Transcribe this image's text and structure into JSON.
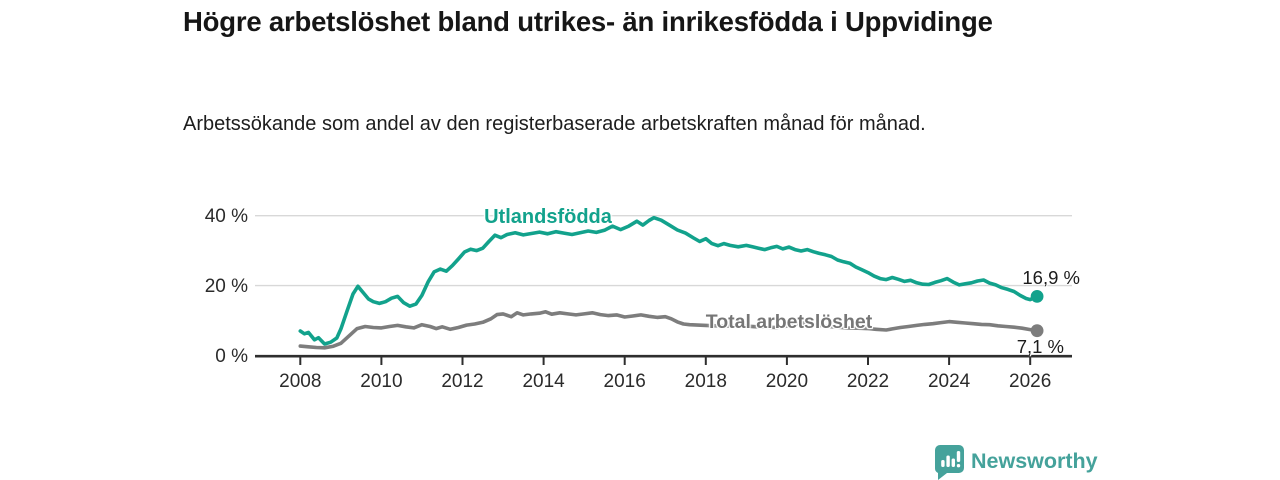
{
  "header": {
    "title": "Högre arbetslöshet bland utrikes- än inrikesfödda i Uppvidinge",
    "subtitle": "Arbetssökande som andel av den registerbaserade arbetskraften månad för månad."
  },
  "chart_data": {
    "type": "line",
    "title": "Högre arbetslöshet bland utrikes- än inrikesfödda i Uppvidinge",
    "subtitle": "Arbetssökande som andel av den registerbaserade arbetskraften månad för månad.",
    "grid": "horizontal",
    "x_axis": {
      "ticks": [
        2008,
        2010,
        2012,
        2014,
        2016,
        2018,
        2020,
        2022,
        2024,
        2026
      ]
    },
    "y_axis": {
      "ticks": [
        0,
        20,
        40
      ],
      "tick_labels": [
        "0 %",
        "20 %",
        "40 %"
      ],
      "range": [
        0,
        45
      ],
      "unit": "%"
    },
    "colors": {
      "grid": "#d8d8d8",
      "axis": "#2e2e2e",
      "tick_text": "#2b2b2b"
    },
    "series": [
      {
        "name": "Utlandsfödda",
        "color": "#12a28c",
        "end_label": "16,9 %",
        "end_value": 16.9,
        "points": [
          [
            2008.0,
            7.0
          ],
          [
            2008.1,
            6.2
          ],
          [
            2008.2,
            6.6
          ],
          [
            2008.35,
            4.5
          ],
          [
            2008.45,
            5.1
          ],
          [
            2008.6,
            3.3
          ],
          [
            2008.75,
            3.8
          ],
          [
            2008.9,
            5.0
          ],
          [
            2009.0,
            7.6
          ],
          [
            2009.15,
            12.6
          ],
          [
            2009.3,
            17.6
          ],
          [
            2009.42,
            19.8
          ],
          [
            2009.55,
            18.0
          ],
          [
            2009.68,
            16.2
          ],
          [
            2009.8,
            15.4
          ],
          [
            2009.95,
            14.9
          ],
          [
            2010.1,
            15.4
          ],
          [
            2010.25,
            16.4
          ],
          [
            2010.4,
            16.9
          ],
          [
            2010.55,
            15.1
          ],
          [
            2010.7,
            14.1
          ],
          [
            2010.85,
            14.7
          ],
          [
            2011.0,
            17.2
          ],
          [
            2011.15,
            21.0
          ],
          [
            2011.3,
            23.9
          ],
          [
            2011.45,
            24.7
          ],
          [
            2011.6,
            24.1
          ],
          [
            2011.75,
            25.7
          ],
          [
            2011.9,
            27.6
          ],
          [
            2012.05,
            29.6
          ],
          [
            2012.2,
            30.4
          ],
          [
            2012.35,
            30.0
          ],
          [
            2012.5,
            30.7
          ],
          [
            2012.65,
            32.6
          ],
          [
            2012.8,
            34.4
          ],
          [
            2012.95,
            33.7
          ],
          [
            2013.1,
            34.6
          ],
          [
            2013.3,
            35.1
          ],
          [
            2013.5,
            34.5
          ],
          [
            2013.7,
            34.9
          ],
          [
            2013.9,
            35.3
          ],
          [
            2014.1,
            34.8
          ],
          [
            2014.3,
            35.4
          ],
          [
            2014.5,
            35.0
          ],
          [
            2014.7,
            34.6
          ],
          [
            2014.9,
            35.1
          ],
          [
            2015.1,
            35.6
          ],
          [
            2015.3,
            35.2
          ],
          [
            2015.5,
            35.8
          ],
          [
            2015.7,
            37.0
          ],
          [
            2015.9,
            36.0
          ],
          [
            2016.1,
            37.0
          ],
          [
            2016.3,
            38.4
          ],
          [
            2016.45,
            37.3
          ],
          [
            2016.6,
            38.6
          ],
          [
            2016.72,
            39.4
          ],
          [
            2016.9,
            38.7
          ],
          [
            2017.1,
            37.3
          ],
          [
            2017.3,
            35.9
          ],
          [
            2017.5,
            35.0
          ],
          [
            2017.7,
            33.6
          ],
          [
            2017.85,
            32.6
          ],
          [
            2018.0,
            33.4
          ],
          [
            2018.15,
            32.0
          ],
          [
            2018.3,
            31.4
          ],
          [
            2018.45,
            32.0
          ],
          [
            2018.6,
            31.5
          ],
          [
            2018.8,
            31.1
          ],
          [
            2019.0,
            31.5
          ],
          [
            2019.15,
            31.1
          ],
          [
            2019.3,
            30.7
          ],
          [
            2019.45,
            30.3
          ],
          [
            2019.6,
            30.8
          ],
          [
            2019.75,
            31.2
          ],
          [
            2019.9,
            30.5
          ],
          [
            2020.05,
            31.0
          ],
          [
            2020.2,
            30.3
          ],
          [
            2020.35,
            29.9
          ],
          [
            2020.5,
            30.3
          ],
          [
            2020.65,
            29.7
          ],
          [
            2020.8,
            29.2
          ],
          [
            2020.95,
            28.8
          ],
          [
            2021.1,
            28.3
          ],
          [
            2021.25,
            27.3
          ],
          [
            2021.4,
            26.8
          ],
          [
            2021.55,
            26.4
          ],
          [
            2021.7,
            25.3
          ],
          [
            2021.85,
            24.5
          ],
          [
            2022.0,
            23.7
          ],
          [
            2022.15,
            22.7
          ],
          [
            2022.3,
            22.0
          ],
          [
            2022.45,
            21.7
          ],
          [
            2022.6,
            22.3
          ],
          [
            2022.75,
            21.8
          ],
          [
            2022.9,
            21.2
          ],
          [
            2023.05,
            21.5
          ],
          [
            2023.2,
            20.8
          ],
          [
            2023.35,
            20.4
          ],
          [
            2023.5,
            20.3
          ],
          [
            2023.65,
            20.9
          ],
          [
            2023.8,
            21.4
          ],
          [
            2023.95,
            22.0
          ],
          [
            2024.1,
            21.0
          ],
          [
            2024.25,
            20.2
          ],
          [
            2024.4,
            20.5
          ],
          [
            2024.55,
            20.8
          ],
          [
            2024.7,
            21.3
          ],
          [
            2024.85,
            21.6
          ],
          [
            2025.0,
            20.7
          ],
          [
            2025.15,
            20.2
          ],
          [
            2025.3,
            19.4
          ],
          [
            2025.45,
            18.9
          ],
          [
            2025.6,
            18.3
          ],
          [
            2025.75,
            17.2
          ],
          [
            2025.9,
            16.3
          ],
          [
            2026.0,
            16.0
          ],
          [
            2026.17,
            16.9
          ]
        ]
      },
      {
        "name": "Total arbetslöshet",
        "color": "#7d7d7d",
        "end_label": "7,1 %",
        "end_value": 7.1,
        "points": [
          [
            2008.0,
            2.7
          ],
          [
            2008.2,
            2.5
          ],
          [
            2008.4,
            2.3
          ],
          [
            2008.6,
            2.2
          ],
          [
            2008.8,
            2.6
          ],
          [
            2009.0,
            3.5
          ],
          [
            2009.2,
            5.6
          ],
          [
            2009.4,
            7.7
          ],
          [
            2009.6,
            8.3
          ],
          [
            2009.8,
            8.0
          ],
          [
            2010.0,
            7.9
          ],
          [
            2010.2,
            8.3
          ],
          [
            2010.4,
            8.6
          ],
          [
            2010.6,
            8.2
          ],
          [
            2010.8,
            7.9
          ],
          [
            2011.0,
            8.8
          ],
          [
            2011.2,
            8.3
          ],
          [
            2011.35,
            7.7
          ],
          [
            2011.5,
            8.2
          ],
          [
            2011.7,
            7.5
          ],
          [
            2011.9,
            8.0
          ],
          [
            2012.1,
            8.7
          ],
          [
            2012.3,
            9.0
          ],
          [
            2012.5,
            9.5
          ],
          [
            2012.7,
            10.5
          ],
          [
            2012.85,
            11.7
          ],
          [
            2013.0,
            11.9
          ],
          [
            2013.2,
            11.1
          ],
          [
            2013.35,
            12.2
          ],
          [
            2013.5,
            11.6
          ],
          [
            2013.7,
            11.9
          ],
          [
            2013.9,
            12.1
          ],
          [
            2014.05,
            12.5
          ],
          [
            2014.2,
            11.8
          ],
          [
            2014.4,
            12.2
          ],
          [
            2014.6,
            11.9
          ],
          [
            2014.8,
            11.6
          ],
          [
            2015.0,
            11.9
          ],
          [
            2015.2,
            12.2
          ],
          [
            2015.4,
            11.7
          ],
          [
            2015.6,
            11.4
          ],
          [
            2015.8,
            11.6
          ],
          [
            2016.0,
            11.0
          ],
          [
            2016.2,
            11.3
          ],
          [
            2016.4,
            11.6
          ],
          [
            2016.6,
            11.2
          ],
          [
            2016.8,
            10.9
          ],
          [
            2017.0,
            11.1
          ],
          [
            2017.15,
            10.5
          ],
          [
            2017.3,
            9.6
          ],
          [
            2017.45,
            9.0
          ],
          [
            2017.6,
            8.8
          ],
          [
            2017.8,
            8.7
          ],
          [
            2018.0,
            8.6
          ],
          [
            2018.25,
            8.5
          ],
          [
            2018.5,
            8.4
          ],
          [
            2018.75,
            8.3
          ],
          [
            2019.0,
            8.4
          ],
          [
            2019.25,
            8.2
          ],
          [
            2019.5,
            8.1
          ],
          [
            2019.75,
            8.0
          ],
          [
            2020.0,
            8.4
          ],
          [
            2020.2,
            9.1
          ],
          [
            2020.4,
            9.3
          ],
          [
            2020.6,
            8.9
          ],
          [
            2020.8,
            8.6
          ],
          [
            2021.0,
            8.3
          ],
          [
            2021.25,
            8.1
          ],
          [
            2021.5,
            7.9
          ],
          [
            2021.75,
            7.8
          ],
          [
            2022.0,
            7.7
          ],
          [
            2022.2,
            7.5
          ],
          [
            2022.45,
            7.3
          ],
          [
            2022.6,
            7.6
          ],
          [
            2022.8,
            8.0
          ],
          [
            2023.0,
            8.3
          ],
          [
            2023.2,
            8.6
          ],
          [
            2023.4,
            8.9
          ],
          [
            2023.6,
            9.1
          ],
          [
            2023.8,
            9.4
          ],
          [
            2024.0,
            9.7
          ],
          [
            2024.2,
            9.5
          ],
          [
            2024.4,
            9.3
          ],
          [
            2024.6,
            9.1
          ],
          [
            2024.8,
            8.9
          ],
          [
            2025.0,
            8.8
          ],
          [
            2025.2,
            8.5
          ],
          [
            2025.4,
            8.3
          ],
          [
            2025.6,
            8.1
          ],
          [
            2025.8,
            7.8
          ],
          [
            2026.0,
            7.4
          ],
          [
            2026.17,
            7.1
          ]
        ]
      }
    ]
  },
  "footer": {
    "brand": "Newsworthy",
    "brand_color": "#45a29b"
  }
}
